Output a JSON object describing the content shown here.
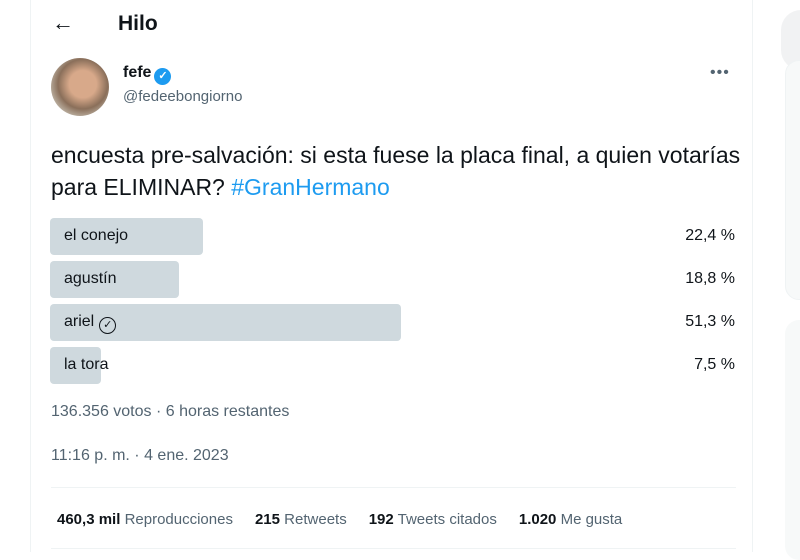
{
  "header": {
    "title": "Hilo"
  },
  "author": {
    "name": "fefe",
    "handle": "@fedeebongiorno"
  },
  "tweet": {
    "text": "encuesta pre-salvación: si esta fuese la placa final, a quien votarías para ELIMINAR? ",
    "hashtag": "#GranHermano"
  },
  "poll": {
    "options": [
      {
        "label": "el conejo",
        "percent": "22,4 %",
        "value": 22.4,
        "winner": false
      },
      {
        "label": "agustín",
        "percent": "18,8 %",
        "value": 18.8,
        "winner": false
      },
      {
        "label": "ariel",
        "percent": "51,3 %",
        "value": 51.3,
        "winner": true
      },
      {
        "label": "la tora",
        "percent": "7,5 %",
        "value": 7.5,
        "winner": false
      }
    ],
    "summary": "136.356 votos · 6 horas restantes"
  },
  "timestamp": "11:16 p. m. · 4 ene. 2023",
  "stats": [
    {
      "count": "460,3 mil",
      "label": "Reproducciones"
    },
    {
      "count": "215",
      "label": "Retweets"
    },
    {
      "count": "192",
      "label": "Tweets citados"
    },
    {
      "count": "1.020",
      "label": "Me gusta"
    }
  ],
  "colors": {
    "accent": "#1d9bf0",
    "bar": "#cfd9de"
  }
}
